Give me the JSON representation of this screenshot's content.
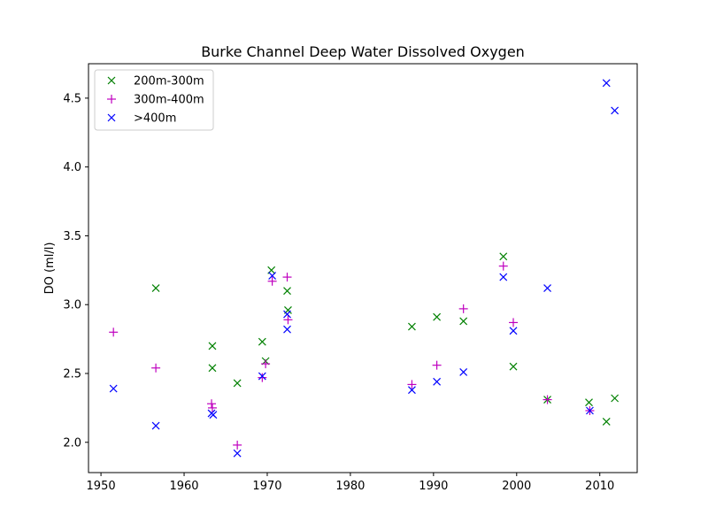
{
  "chart_data": {
    "type": "scatter",
    "title": "Burke Channel Deep Water Dissolved Oxygen",
    "xlabel": "",
    "ylabel": "DO (ml/l)",
    "xlim": [
      1948.5,
      2014.5
    ],
    "ylim": [
      1.78,
      4.75
    ],
    "xticks": [
      1950,
      1960,
      1970,
      1980,
      1990,
      2000,
      2010
    ],
    "yticks": [
      2.0,
      2.5,
      3.0,
      3.5,
      4.0,
      4.5
    ],
    "ytick_labels": [
      "2.0",
      "2.5",
      "3.0",
      "3.5",
      "4.0",
      "4.5"
    ],
    "grid": false,
    "legend_position": "top-left",
    "series": [
      {
        "name": "200m-300m",
        "marker": "x",
        "color": "#008000",
        "points": [
          [
            1956.6,
            3.12
          ],
          [
            1963.4,
            2.54
          ],
          [
            1963.4,
            2.7
          ],
          [
            1966.4,
            2.43
          ],
          [
            1969.4,
            2.73
          ],
          [
            1969.8,
            2.59
          ],
          [
            1970.5,
            3.25
          ],
          [
            1972.4,
            3.1
          ],
          [
            1972.5,
            2.96
          ],
          [
            1987.4,
            2.84
          ],
          [
            1990.4,
            2.91
          ],
          [
            1993.6,
            2.88
          ],
          [
            1998.4,
            3.35
          ],
          [
            1999.6,
            2.55
          ],
          [
            2003.7,
            2.31
          ],
          [
            2008.7,
            2.29
          ],
          [
            2010.8,
            2.15
          ],
          [
            2011.8,
            2.32
          ]
        ]
      },
      {
        "name": "300m-400m",
        "marker": "+",
        "color": "#bf00bf",
        "points": [
          [
            1951.5,
            2.8
          ],
          [
            1956.6,
            2.54
          ],
          [
            1963.3,
            2.28
          ],
          [
            1963.4,
            2.25
          ],
          [
            1966.4,
            1.98
          ],
          [
            1969.4,
            2.47
          ],
          [
            1969.8,
            2.57
          ],
          [
            1970.6,
            3.17
          ],
          [
            1972.4,
            3.2
          ],
          [
            1972.5,
            2.89
          ],
          [
            1987.4,
            2.42
          ],
          [
            1990.4,
            2.56
          ],
          [
            1993.6,
            2.97
          ],
          [
            1998.4,
            3.28
          ],
          [
            1999.6,
            2.87
          ],
          [
            2003.7,
            2.31
          ],
          [
            2008.8,
            2.23
          ]
        ]
      },
      {
        "name": ">400m",
        "marker": "x",
        "color": "#0000ff",
        "points": [
          [
            1951.5,
            2.39
          ],
          [
            1956.6,
            2.12
          ],
          [
            1963.3,
            2.21
          ],
          [
            1963.5,
            2.2
          ],
          [
            1966.4,
            1.92
          ],
          [
            1969.4,
            2.48
          ],
          [
            1970.6,
            3.21
          ],
          [
            1972.4,
            2.93
          ],
          [
            1972.4,
            2.82
          ],
          [
            1987.4,
            2.38
          ],
          [
            1990.4,
            2.44
          ],
          [
            1993.6,
            2.51
          ],
          [
            1998.4,
            3.2
          ],
          [
            1999.6,
            2.81
          ],
          [
            2003.7,
            3.12
          ],
          [
            2008.8,
            2.23
          ],
          [
            2010.8,
            4.61
          ],
          [
            2011.8,
            4.41
          ]
        ]
      }
    ]
  }
}
